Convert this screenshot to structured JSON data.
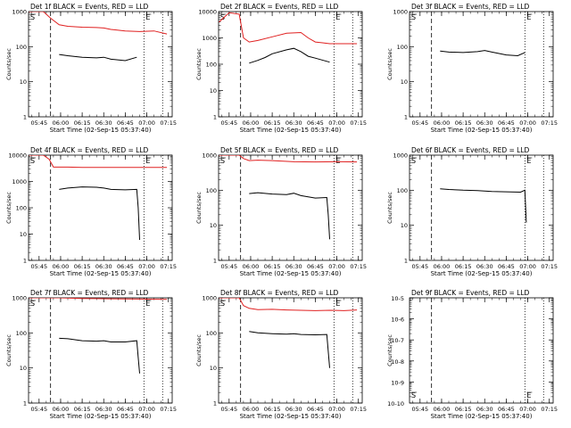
{
  "figure": {
    "chart_data": [
      {
        "type": "line",
        "title": "Det 1f BLACK = Events, RED = LLD",
        "ylabel": "Counts/sec",
        "xlabel": "Start Time (02-Sep-15 05:37:40)",
        "yscale": "log",
        "ylim": [
          1,
          1000
        ],
        "yticks": [
          "1",
          "10",
          "100",
          "1000"
        ],
        "xticks": [
          "05:45",
          "06:00",
          "06:15",
          "06:30",
          "06:45",
          "07:00",
          "07:15"
        ],
        "markers": [
          "S",
          "E"
        ],
        "series": [
          {
            "color": "#000000",
            "x": [
              "05:59",
              "06:05",
              "06:15",
              "06:25",
              "06:30",
              "06:35",
              "06:45",
              "06:53"
            ],
            "y": [
              60,
              55,
              50,
              48,
              50,
              44,
              40,
              50
            ]
          },
          {
            "color": "#e02020",
            "x": [
              "05:38",
              "05:42",
              "05:48",
              "05:53",
              "05:59",
              "06:05",
              "06:15",
              "06:25",
              "06:30",
              "06:35",
              "06:45",
              "06:55",
              "07:05",
              "07:14"
            ],
            "y": [
              1000,
              1000,
              1000,
              650,
              420,
              380,
              360,
              350,
              340,
              310,
              280,
              270,
              280,
              230
            ]
          }
        ]
      },
      {
        "type": "line",
        "title": "Det 2f BLACK = Events, RED = LLD",
        "ylabel": "Counts/sec",
        "xlabel": "Start Time (02-Sep-15 05:37:40)",
        "yscale": "log",
        "ylim": [
          1,
          10000
        ],
        "yticks": [
          "1",
          "10",
          "100",
          "1000",
          "10000"
        ],
        "xticks": [
          "05:45",
          "06:00",
          "06:15",
          "06:30",
          "06:45",
          "07:00",
          "07:15"
        ],
        "markers": [
          "S",
          "E"
        ],
        "series": [
          {
            "color": "#000000",
            "x": [
              "05:59",
              "06:05",
              "06:10",
              "06:15",
              "06:25",
              "06:30",
              "06:35",
              "06:40",
              "06:45",
              "06:55"
            ],
            "y": [
              110,
              140,
              180,
              250,
              350,
              400,
              300,
              200,
              170,
              120
            ]
          },
          {
            "color": "#e02020",
            "x": [
              "05:38",
              "05:45",
              "05:52",
              "05:55",
              "05:59",
              "06:05",
              "06:15",
              "06:25",
              "06:35",
              "06:40",
              "06:45",
              "06:50",
              "06:55",
              "07:05",
              "07:14"
            ],
            "y": [
              4000,
              9000,
              8000,
              1000,
              700,
              800,
              1100,
              1500,
              1600,
              1000,
              700,
              650,
              600,
              600,
              600
            ]
          }
        ]
      },
      {
        "type": "line",
        "title": "Det 3f BLACK = Events, RED = LLD",
        "ylabel": "Counts/sec",
        "xlabel": "Start Time (02-Sep-15 05:37:40)",
        "yscale": "log",
        "ylim": [
          1,
          1000
        ],
        "yticks": [
          "1",
          "10",
          "100",
          "1000"
        ],
        "xticks": [
          "05:45",
          "06:00",
          "06:15",
          "06:30",
          "06:45",
          "07:00",
          "07:15"
        ],
        "markers": [
          "S",
          "E"
        ],
        "series": [
          {
            "color": "#000000",
            "x": [
              "05:59",
              "06:05",
              "06:15",
              "06:25",
              "06:30",
              "06:35",
              "06:45",
              "06:53",
              "06:58"
            ],
            "y": [
              75,
              70,
              68,
              72,
              78,
              70,
              58,
              55,
              68
            ]
          }
        ]
      },
      {
        "type": "line",
        "title": "Det 4f BLACK = Events, RED = LLD",
        "ylabel": "Counts/sec",
        "xlabel": "Start Time (02-Sep-15 05:37:40)",
        "yscale": "log",
        "ylim": [
          1,
          10000
        ],
        "yticks": [
          "1",
          "10",
          "100",
          "1000",
          "10000"
        ],
        "xticks": [
          "05:45",
          "06:00",
          "06:15",
          "06:30",
          "06:45",
          "07:00",
          "07:15"
        ],
        "markers": [
          "S",
          "E"
        ],
        "series": [
          {
            "color": "#000000",
            "x": [
              "05:59",
              "06:05",
              "06:15",
              "06:25",
              "06:30",
              "06:35",
              "06:45",
              "06:53",
              "06:54",
              "06:55"
            ],
            "y": [
              500,
              560,
              620,
              600,
              560,
              500,
              480,
              500,
              100,
              6
            ]
          },
          {
            "color": "#e02020",
            "x": [
              "05:38",
              "05:48",
              "05:52",
              "05:55",
              "05:59",
              "06:05",
              "06:15",
              "06:30",
              "06:45",
              "07:00",
              "07:14"
            ],
            "y": [
              10000,
              10000,
              7000,
              3500,
              3500,
              3500,
              3400,
              3400,
              3400,
              3400,
              3400
            ]
          }
        ]
      },
      {
        "type": "line",
        "title": "Det 5f BLACK = Events, RED = LLD",
        "ylabel": "Counts/sec",
        "xlabel": "Start Time (02-Sep-15 05:37:40)",
        "yscale": "log",
        "ylim": [
          1,
          1000
        ],
        "yticks": [
          "1",
          "10",
          "100",
          "1000"
        ],
        "xticks": [
          "05:45",
          "06:00",
          "06:15",
          "06:30",
          "06:45",
          "07:00",
          "07:15"
        ],
        "markers": [
          "S",
          "E"
        ],
        "series": [
          {
            "color": "#000000",
            "x": [
              "05:59",
              "06:05",
              "06:15",
              "06:25",
              "06:30",
              "06:35",
              "06:45",
              "06:53",
              "06:54",
              "06:55"
            ],
            "y": [
              80,
              85,
              78,
              75,
              82,
              70,
              60,
              62,
              20,
              4
            ]
          },
          {
            "color": "#e02020",
            "x": [
              "05:38",
              "05:48",
              "05:52",
              "05:55",
              "05:59",
              "06:05",
              "06:15",
              "06:30",
              "06:45",
              "07:00",
              "07:14"
            ],
            "y": [
              1000,
              1000,
              1000,
              800,
              700,
              720,
              700,
              650,
              640,
              650,
              640
            ]
          }
        ]
      },
      {
        "type": "line",
        "title": "Det 6f BLACK = Events, RED = LLD",
        "ylabel": "Counts/sec",
        "xlabel": "Start Time (02-Sep-15 05:37:40)",
        "yscale": "log",
        "ylim": [
          1,
          1000
        ],
        "yticks": [
          "1",
          "10",
          "100",
          "1000"
        ],
        "xticks": [
          "05:45",
          "06:00",
          "06:15",
          "06:30",
          "06:45",
          "07:00",
          "07:15"
        ],
        "markers": [
          "S",
          "E"
        ],
        "series": [
          {
            "color": "#000000",
            "x": [
              "05:59",
              "06:05",
              "06:15",
              "06:25",
              "06:30",
              "06:35",
              "06:45",
              "06:55",
              "06:58",
              "06:59"
            ],
            "y": [
              110,
              105,
              100,
              98,
              95,
              92,
              90,
              88,
              100,
              12
            ]
          }
        ]
      },
      {
        "type": "line",
        "title": "Det 7f BLACK = Events, RED = LLD",
        "ylabel": "Counts/sec",
        "xlabel": "Start Time (02-Sep-15 05:37:40)",
        "yscale": "log",
        "ylim": [
          1,
          1000
        ],
        "yticks": [
          "1",
          "10",
          "100",
          "1000"
        ],
        "xticks": [
          "05:45",
          "06:00",
          "06:15",
          "06:30",
          "06:45",
          "07:00",
          "07:15"
        ],
        "markers": [
          "S",
          "E"
        ],
        "series": [
          {
            "color": "#000000",
            "x": [
              "05:59",
              "06:05",
              "06:15",
              "06:25",
              "06:30",
              "06:35",
              "06:45",
              "06:53",
              "06:54",
              "06:55"
            ],
            "y": [
              70,
              68,
              60,
              58,
              60,
              55,
              55,
              60,
              20,
              7
            ]
          },
          {
            "color": "#e02020",
            "x": [
              "05:38",
              "05:45",
              "05:52",
              "05:59",
              "06:05",
              "06:15",
              "06:25",
              "06:35",
              "06:45",
              "06:55",
              "07:05",
              "07:14"
            ],
            "y": [
              1000,
              1000,
              1000,
              1000,
              980,
              960,
              950,
              940,
              930,
              920,
              910,
              900
            ]
          }
        ]
      },
      {
        "type": "line",
        "title": "Det 8f BLACK = Events, RED = LLD",
        "ylabel": "Counts/sec",
        "xlabel": "Start Time (02-Sep-15 05:37:40)",
        "yscale": "log",
        "ylim": [
          1,
          1000
        ],
        "yticks": [
          "1",
          "10",
          "100",
          "1000"
        ],
        "xticks": [
          "05:45",
          "06:00",
          "06:15",
          "06:30",
          "06:45",
          "07:00",
          "07:15"
        ],
        "markers": [
          "S",
          "E"
        ],
        "series": [
          {
            "color": "#000000",
            "x": [
              "05:59",
              "06:05",
              "06:15",
              "06:25",
              "06:30",
              "06:35",
              "06:45",
              "06:53",
              "06:54",
              "06:55"
            ],
            "y": [
              110,
              100,
              95,
              92,
              95,
              90,
              88,
              90,
              30,
              10
            ]
          },
          {
            "color": "#e02020",
            "x": [
              "05:38",
              "05:48",
              "05:52",
              "05:55",
              "05:59",
              "06:05",
              "06:15",
              "06:25",
              "06:35",
              "06:45",
              "06:55",
              "07:05",
              "07:14"
            ],
            "y": [
              1000,
              1000,
              1000,
              600,
              500,
              460,
              470,
              450,
              440,
              430,
              440,
              430,
              450
            ]
          }
        ]
      },
      {
        "type": "line",
        "title": "Det 9f BLACK = Events, RED = LLD",
        "ylabel": "Counts/sec",
        "xlabel": "Start Time (02-Sep-15 05:37:40)",
        "yscale": "log",
        "ylim": [
          1e-10,
          1e-05
        ],
        "yticks": [
          "10-10",
          "10-9",
          "10-8",
          "10-7",
          "10-6",
          "10-5"
        ],
        "xticks": [
          "05:45",
          "06:00",
          "06:15",
          "06:30",
          "06:45",
          "07:00",
          "07:15"
        ],
        "markers": [
          "S",
          "E"
        ],
        "series": []
      }
    ]
  }
}
